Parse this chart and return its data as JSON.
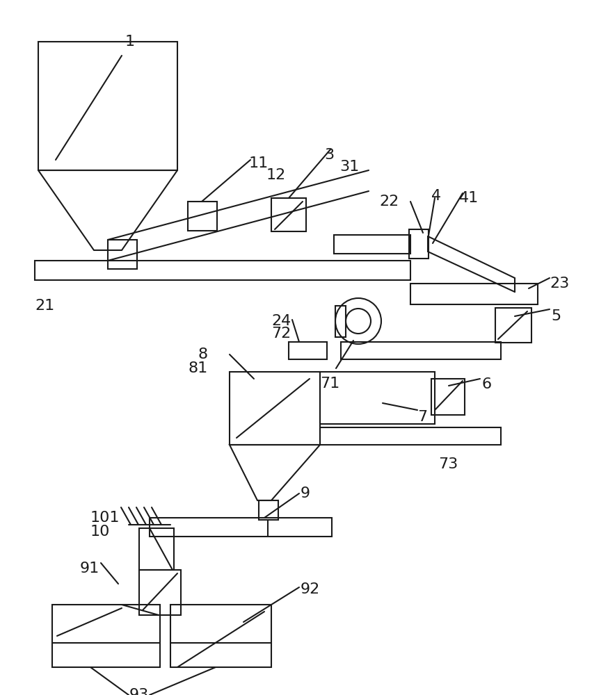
{
  "bg": "#ffffff",
  "lc": "#1a1a1a",
  "lw": 1.5,
  "fs": 16
}
